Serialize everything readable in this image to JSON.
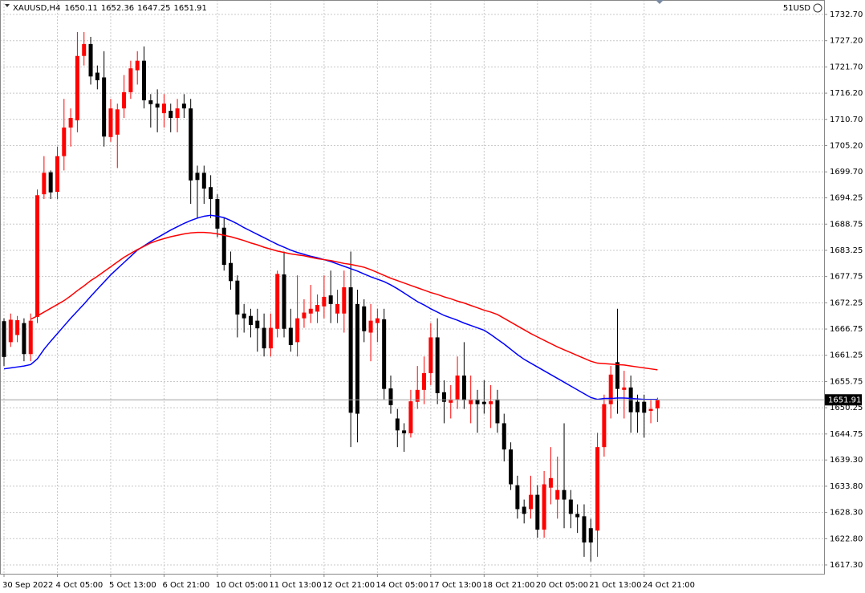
{
  "chart_data": {
    "type": "candlestick",
    "symbol": "XAUUSD,H4",
    "account": "51USD",
    "up_color": "#ff0000",
    "down_color": "#000000",
    "grid": true,
    "categories": [
      "30 Sep 2022",
      null,
      null,
      null,
      null,
      null,
      null,
      null,
      "4 Oct 05:00",
      null,
      null,
      null,
      null,
      null,
      null,
      null,
      "5 Oct 13:00",
      null,
      null,
      null,
      null,
      null,
      null,
      null,
      "6 Oct 21:00",
      null,
      null,
      null,
      null,
      null,
      null,
      null,
      "10 Oct 05:00",
      null,
      null,
      null,
      null,
      null,
      null,
      null,
      "11 Oct 13:00",
      null,
      null,
      null,
      null,
      null,
      null,
      null,
      "12 Oct 21:00",
      null,
      null,
      null,
      null,
      null,
      null,
      null,
      "14 Oct 05:00",
      null,
      null,
      null,
      null,
      null,
      null,
      null,
      "17 Oct 13:00",
      null,
      null,
      null,
      null,
      null,
      null,
      null,
      "18 Oct 21:00",
      null,
      null,
      null,
      null,
      null,
      null,
      null,
      "20 Oct 05:00",
      null,
      null,
      null,
      null,
      null,
      null,
      null,
      "21 Oct 13:00",
      null,
      null,
      null,
      null,
      null,
      null,
      null,
      "24 Oct 21:00",
      null,
      null
    ],
    "open": [
      1668.4,
      1664,
      1665.5,
      1668,
      1661.5,
      1669.3,
      1695,
      1699.6,
      1695.5,
      1703,
      1709,
      1710.5,
      1724,
      1726.5,
      1720.5,
      1719.5,
      1707,
      1707.5,
      1713,
      1716.4,
      1721,
      1723,
      1714.7,
      1714,
      1712,
      1712.5,
      1711,
      1714,
      1713,
      1699.5,
      1699.5,
      1696.5,
      1694,
      1688,
      1680.6,
      1676.9,
      1670,
      1669.5,
      1668.5,
      1667,
      1662.7,
      1666.8,
      1678.2,
      1667,
      1664,
      1669,
      1670,
      1670.4,
      1671.5,
      1673.8,
      1670,
      1670,
      1675.5,
      1672,
      1671.5,
      1666,
      1668,
      1668.8,
      1654.3,
      1648,
      1645.5,
      1644.9,
      1651.5,
      1654,
      1657.5,
      1665,
      1653.5,
      1651.3,
      1652,
      1657,
      1651,
      1652,
      1651.5,
      1651,
      1652,
      1647,
      1641.5,
      1634,
      1629.5,
      1629,
      1632,
      1624.7,
      1633.5,
      1631,
      1633,
      1631,
      1628,
      1627.5,
      1625,
      1624.5,
      1642,
      1651,
      1659.8,
      1654,
      1654.5,
      1651.5,
      1651.5,
      1649.6,
      1650.11
    ],
    "high": [
      1669,
      1670,
      1669.5,
      1669,
      1670,
      1696,
      1703,
      1700,
      1705,
      1715,
      1713,
      1729,
      1729,
      1728,
      1722,
      1725,
      1715,
      1714,
      1720,
      1723,
      1725,
      1726,
      1716,
      1717,
      1716,
      1714,
      1715,
      1716,
      1715,
      1701,
      1701,
      1699,
      1695,
      1690,
      1683,
      1678,
      1672,
      1671,
      1671,
      1670,
      1670,
      1679,
      1683,
      1671,
      1678,
      1673,
      1676,
      1674,
      1678,
      1679,
      1675,
      1679,
      1683,
      1675,
      1673,
      1672,
      1671,
      1671,
      1657,
      1650,
      1647,
      1654,
      1659,
      1661,
      1668,
      1669,
      1656,
      1655,
      1661,
      1664,
      1657,
      1654,
      1656,
      1655,
      1654,
      1649,
      1643,
      1636,
      1631,
      1636,
      1634,
      1637,
      1642,
      1640,
      1647,
      1633,
      1630,
      1630,
      1627,
      1645,
      1653,
      1659,
      1671,
      1658,
      1657,
      1653,
      1653,
      1652,
      1652.36
    ],
    "low": [
      1659,
      1663,
      1664,
      1660,
      1660,
      1668,
      1694,
      1694,
      1694,
      1700,
      1705,
      1708,
      1722,
      1718,
      1717,
      1705,
      1706,
      1700.5,
      1711,
      1715,
      1718,
      1713,
      1709,
      1708,
      1709,
      1708,
      1708,
      1711,
      1693,
      1690,
      1693,
      1690,
      1686,
      1679,
      1675,
      1665,
      1666,
      1665,
      1662,
      1661,
      1661,
      1665,
      1665,
      1662,
      1661,
      1667,
      1668,
      1668,
      1669,
      1668,
      1668,
      1666,
      1642,
      1643,
      1664,
      1660,
      1664,
      1652,
      1649,
      1642,
      1641,
      1644,
      1650,
      1651,
      1655,
      1651,
      1647,
      1648,
      1650,
      1650,
      1647,
      1645,
      1649,
      1646,
      1645,
      1639,
      1633,
      1627,
      1626,
      1627,
      1623,
      1623,
      1630,
      1627,
      1625,
      1625,
      1624,
      1619,
      1618,
      1619,
      1640,
      1648,
      1649,
      1648,
      1645,
      1645,
      1644,
      1647,
      1647.25
    ],
    "close": [
      1660.9,
      1668.7,
      1668.6,
      1661.5,
      1668.5,
      1694.8,
      1699.5,
      1695.4,
      1703,
      1709,
      1711,
      1724,
      1726.5,
      1719.7,
      1718.9,
      1707.1,
      1713,
      1712.8,
      1716.4,
      1721.4,
      1723,
      1714.7,
      1713.9,
      1713.2,
      1714,
      1711,
      1713,
      1713,
      1697.9,
      1698,
      1696.2,
      1694,
      1687.8,
      1680.2,
      1676.8,
      1669.8,
      1669,
      1667.6,
      1666.9,
      1662.7,
      1667,
      1678.3,
      1666.8,
      1663.4,
      1669,
      1670.2,
      1671,
      1671.8,
      1673.5,
      1672,
      1672,
      1675.5,
      1649.2,
      1649,
      1666.3,
      1668.5,
      1669,
      1654.2,
      1650.8,
      1645.5,
      1644.9,
      1651.6,
      1654,
      1657.5,
      1665,
      1653.3,
      1651.5,
      1652,
      1657,
      1651.8,
      1652,
      1651,
      1651,
      1651.6,
      1647,
      1641.5,
      1634.2,
      1629,
      1628,
      1632,
      1624.7,
      1634.2,
      1635.5,
      1633,
      1631,
      1628,
      1627.3,
      1622,
      1622,
      1642,
      1651,
      1657.2,
      1654.2,
      1654.5,
      1649.3,
      1649.3,
      1649.2,
      1650,
      1651.91
    ],
    "series": [
      {
        "color": "#0000ff",
        "values": [
          1658.4,
          1658.6,
          1658.8,
          1659.0,
          1659.3,
          1660.5,
          1662.5,
          1664.2,
          1665.8,
          1667.4,
          1669.0,
          1670.5,
          1672.0,
          1673.6,
          1675.1,
          1676.6,
          1678.1,
          1679.4,
          1680.7,
          1682.0,
          1683.3,
          1684.2,
          1685.1,
          1685.9,
          1686.7,
          1687.5,
          1688.2,
          1688.9,
          1689.5,
          1690.0,
          1690.4,
          1690.6,
          1690.4,
          1690.1,
          1689.5,
          1688.8,
          1688.0,
          1687.3,
          1686.6,
          1685.9,
          1685.2,
          1684.5,
          1683.9,
          1683.3,
          1682.8,
          1682.4,
          1682.0,
          1681.7,
          1681.3,
          1680.9,
          1680.4,
          1679.9,
          1679.4,
          1678.9,
          1678.3,
          1677.7,
          1677.2,
          1676.7,
          1676.0,
          1675.2,
          1674.3,
          1673.4,
          1672.5,
          1671.8,
          1671.0,
          1670.3,
          1669.6,
          1669.1,
          1668.6,
          1668.0,
          1667.5,
          1667.0,
          1666.5,
          1665.6,
          1664.6,
          1663.6,
          1662.5,
          1661.4,
          1660.4,
          1659.6,
          1658.8,
          1658.0,
          1657.2,
          1656.4,
          1655.6,
          1654.8,
          1654.0,
          1653.2,
          1652.4,
          1652.0,
          1652.2,
          1652.2,
          1652.3,
          1652.3,
          1652.2,
          1652.1,
          1652.0,
          1652.0,
          1652.0
        ]
      },
      {
        "color": "#ff0000",
        "values": [
          null,
          null,
          null,
          null,
          1668.8,
          1669.5,
          1670.3,
          1671.1,
          1671.9,
          1672.7,
          1673.7,
          1674.8,
          1675.8,
          1676.9,
          1677.8,
          1678.8,
          1679.8,
          1680.8,
          1681.8,
          1682.6,
          1683.4,
          1684.1,
          1684.8,
          1685.3,
          1685.7,
          1686.1,
          1686.4,
          1686.7,
          1686.9,
          1687.0,
          1687.0,
          1686.9,
          1686.7,
          1686.4,
          1686.1,
          1685.7,
          1685.3,
          1684.8,
          1684.4,
          1683.9,
          1683.5,
          1683.1,
          1682.8,
          1682.5,
          1682.3,
          1682.1,
          1681.8,
          1681.5,
          1681.3,
          1681.1,
          1680.8,
          1680.5,
          1680.3,
          1680.0,
          1679.7,
          1679.2,
          1678.6,
          1678.0,
          1677.4,
          1676.9,
          1676.4,
          1675.9,
          1675.4,
          1674.9,
          1674.4,
          1674.0,
          1673.5,
          1673.1,
          1672.6,
          1672.2,
          1671.7,
          1671.2,
          1670.7,
          1670.3,
          1669.8,
          1669.0,
          1668.2,
          1667.4,
          1666.6,
          1665.8,
          1665.1,
          1664.4,
          1663.7,
          1663.0,
          1662.4,
          1661.8,
          1661.2,
          1660.6,
          1660.0,
          1659.6,
          1659.5,
          1659.4,
          1659.3,
          1659.2,
          1659.0,
          1658.8,
          1658.6,
          1658.4,
          1658.2
        ]
      }
    ],
    "ylim": [
      1615.45,
      1735.73
    ],
    "yticks": [
      {
        "value": 1732.7,
        "label": "1732.70"
      },
      {
        "value": 1727.2,
        "label": "1727.20"
      },
      {
        "value": 1721.7,
        "label": "1721.70"
      },
      {
        "value": 1716.2,
        "label": "1716.20"
      },
      {
        "value": 1710.7,
        "label": "1710.70"
      },
      {
        "value": 1705.2,
        "label": "1705.20"
      },
      {
        "value": 1699.7,
        "label": "1699.70"
      },
      1694.25,
      1688.75,
      1683.25,
      1677.75,
      1672.25,
      1666.75,
      1661.25,
      1655.75,
      1650.25,
      1644.75,
      {
        "value": 1639.3,
        "label": "1639.30"
      },
      {
        "value": 1633.8,
        "label": "1633.80"
      },
      {
        "value": 1628.3,
        "label": "1628.30"
      },
      {
        "value": 1622.8,
        "label": "1622.80"
      },
      {
        "value": 1617.3,
        "label": "1617.30"
      }
    ]
  }
}
